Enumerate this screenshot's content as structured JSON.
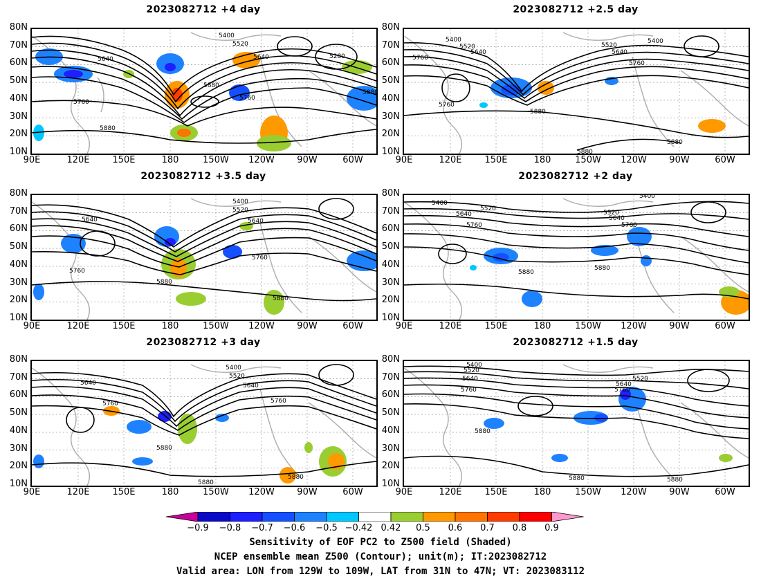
{
  "panels": [
    {
      "title": "2023082712 +4 day",
      "labels": [
        "5400",
        "5520",
        "5640",
        "5640",
        "5280",
        "5760",
        "5880",
        "5760",
        "5880",
        "5880"
      ]
    },
    {
      "title": "2023082712 +2.5 day",
      "labels": [
        "5400",
        "5520",
        "5640",
        "5760",
        "5400",
        "5520",
        "5640",
        "5760",
        "5760",
        "5880",
        "5880",
        "5880"
      ]
    },
    {
      "title": "2023082712 +3.5 day",
      "labels": [
        "5400",
        "5520",
        "5640",
        "5640",
        "5760",
        "5880",
        "5760",
        "5880"
      ]
    },
    {
      "title": "2023082712 +2 day",
      "labels": [
        "5400",
        "5520",
        "5640",
        "5760",
        "5400",
        "5520",
        "5640",
        "5760",
        "5880",
        "5880"
      ]
    },
    {
      "title": "2023082712 +3 day",
      "labels": [
        "5400",
        "5520",
        "5640",
        "5640",
        "5760",
        "5760",
        "5880",
        "5880",
        "5880"
      ]
    },
    {
      "title": "2023082712 +1.5 day",
      "labels": [
        "5400",
        "5520",
        "5640",
        "5760",
        "5520",
        "5640",
        "5760",
        "5880",
        "5880",
        "5880"
      ]
    }
  ],
  "lat_ticks": [
    "80N",
    "70N",
    "60N",
    "50N",
    "40N",
    "30N",
    "20N",
    "10N"
  ],
  "lon_ticks": [
    "90E",
    "120E",
    "150E",
    "180",
    "150W",
    "120W",
    "90W",
    "60W"
  ],
  "colorbar": {
    "ticks": [
      "−0.9",
      "−0.8",
      "−0.7",
      "−0.6",
      "−0.5",
      "−0.42",
      "0.42",
      "0.5",
      "0.6",
      "0.7",
      "0.8",
      "0.9"
    ],
    "colors": [
      "#c8009a",
      "#0a0ac8",
      "#1e1eff",
      "#1450ff",
      "#1e82ff",
      "#00c8ff",
      "#ffffff",
      "#9acd32",
      "#ff9900",
      "#ff7300",
      "#ff3c00",
      "#ff0000",
      "#ff99cc"
    ]
  },
  "caption": {
    "line1": "Sensitivity of EOF PC2 to Z500 field (Shaded)",
    "line2": "NCEP ensemble mean Z500 (Contour); unit(m); IT:2023082712",
    "line3": "Valid area: LON from 129W to 109W, LAT from 31N to 47N; VT: 2023083112"
  }
}
